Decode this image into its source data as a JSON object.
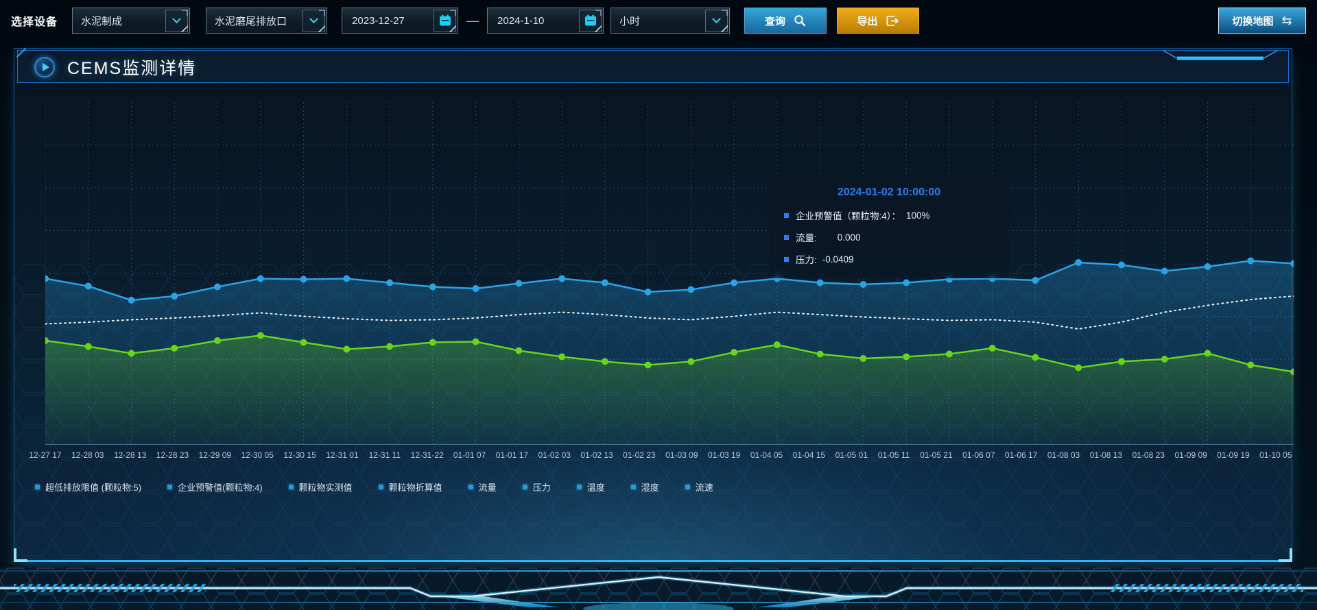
{
  "toolbar": {
    "device_label": "选择设备",
    "device_select": "水泥制成",
    "outlet_select": "水泥磨尾排放口",
    "date_start": "2023-12-27",
    "date_separator": "—",
    "date_end": "2024-1-10",
    "interval_select": "小时",
    "query_label": "查询",
    "export_label": "导出",
    "switch_map_label": "切换地图",
    "swap_icon_glyph": "⇆"
  },
  "panel": {
    "title": "CEMS监测详情"
  },
  "tooltip": {
    "title": "2024-01-02 10:00:00",
    "marker_color": "#2e7fe8",
    "items": [
      {
        "label": "企业预警值（颗粒物:4）：",
        "value": "100%"
      },
      {
        "label": "流量:",
        "value": "0.000"
      },
      {
        "label": "压力:",
        "value": "-0.0409"
      }
    ]
  },
  "legend": {
    "marker_color": "#2a97d8",
    "items": [
      "超低排放限值 (颗粒物:5)",
      "企业预警值(颗粒物:4)",
      "颗粒物实测值",
      "颗粒物折算值",
      "流量",
      "压力",
      "温度",
      "湿度",
      "流速"
    ]
  },
  "colors": {
    "accent_cyan": "#2eb6f8",
    "header_border": "#1c6fd0",
    "query_button": "#1f86c0",
    "export_button": "#d99410",
    "grid": "rgba(140,180,210,0.28)"
  },
  "chart_data": {
    "type": "line",
    "title": "",
    "xlabel": "",
    "ylabel": "",
    "ylim": [
      0,
      100
    ],
    "grid": true,
    "legend_position": "bottom",
    "note": "y-axis has no visible tick labels; values are estimated % of plot height",
    "categories": [
      "12-27 17",
      "12-28 03",
      "12-28 13",
      "12-28 23",
      "12-29 09",
      "12-30 05",
      "12-30 15",
      "12-31 01",
      "12-31 11",
      "12-31-22",
      "01-01 07",
      "01-01 17",
      "01-02 03",
      "01-02 13",
      "01-02 23",
      "01-03 09",
      "01-03 19",
      "01-04 05",
      "01-04 15",
      "01-05 01",
      "01-05 11",
      "01-05 21",
      "01-06 07",
      "01-06 17",
      "01-08 03",
      "01-08 13",
      "01-08 23",
      "01-09 09",
      "01-09 19",
      "01-10 05"
    ],
    "series": [
      {
        "name": "企业预警值(颗粒物:4)",
        "color": "#2aa3e8",
        "style": "solid-dots",
        "area": true,
        "values": [
          48.5,
          46.3,
          42.2,
          43.4,
          46.1,
          48.5,
          48.3,
          48.5,
          47.3,
          46.1,
          45.6,
          47.1,
          48.5,
          47.3,
          44.6,
          45.3,
          47.3,
          48.5,
          47.3,
          46.8,
          47.3,
          48.3,
          48.5,
          48.0,
          53.2,
          52.5,
          50.7,
          52.0,
          53.7,
          52.9
        ]
      },
      {
        "name": "颗粒物折算值",
        "color": "#eef6fb",
        "style": "dotted",
        "area": false,
        "values": [
          35.3,
          35.8,
          36.5,
          37.0,
          37.7,
          38.5,
          37.5,
          36.8,
          36.3,
          36.5,
          37.0,
          38.0,
          38.7,
          38.0,
          37.0,
          36.5,
          37.5,
          38.7,
          38.0,
          37.3,
          36.8,
          36.3,
          36.5,
          35.8,
          33.8,
          35.8,
          38.7,
          40.7,
          42.4,
          43.4
        ]
      },
      {
        "name": "颗粒物实测值",
        "color": "#66d51c",
        "style": "solid-dots",
        "area": true,
        "values": [
          30.4,
          28.7,
          26.7,
          28.2,
          30.4,
          31.9,
          29.9,
          27.9,
          28.7,
          29.9,
          30.1,
          27.5,
          25.7,
          24.3,
          23.3,
          24.3,
          27.0,
          29.2,
          26.5,
          25.2,
          25.7,
          26.5,
          28.2,
          25.5,
          22.5,
          24.3,
          25.0,
          26.7,
          23.3,
          21.3
        ]
      }
    ]
  }
}
